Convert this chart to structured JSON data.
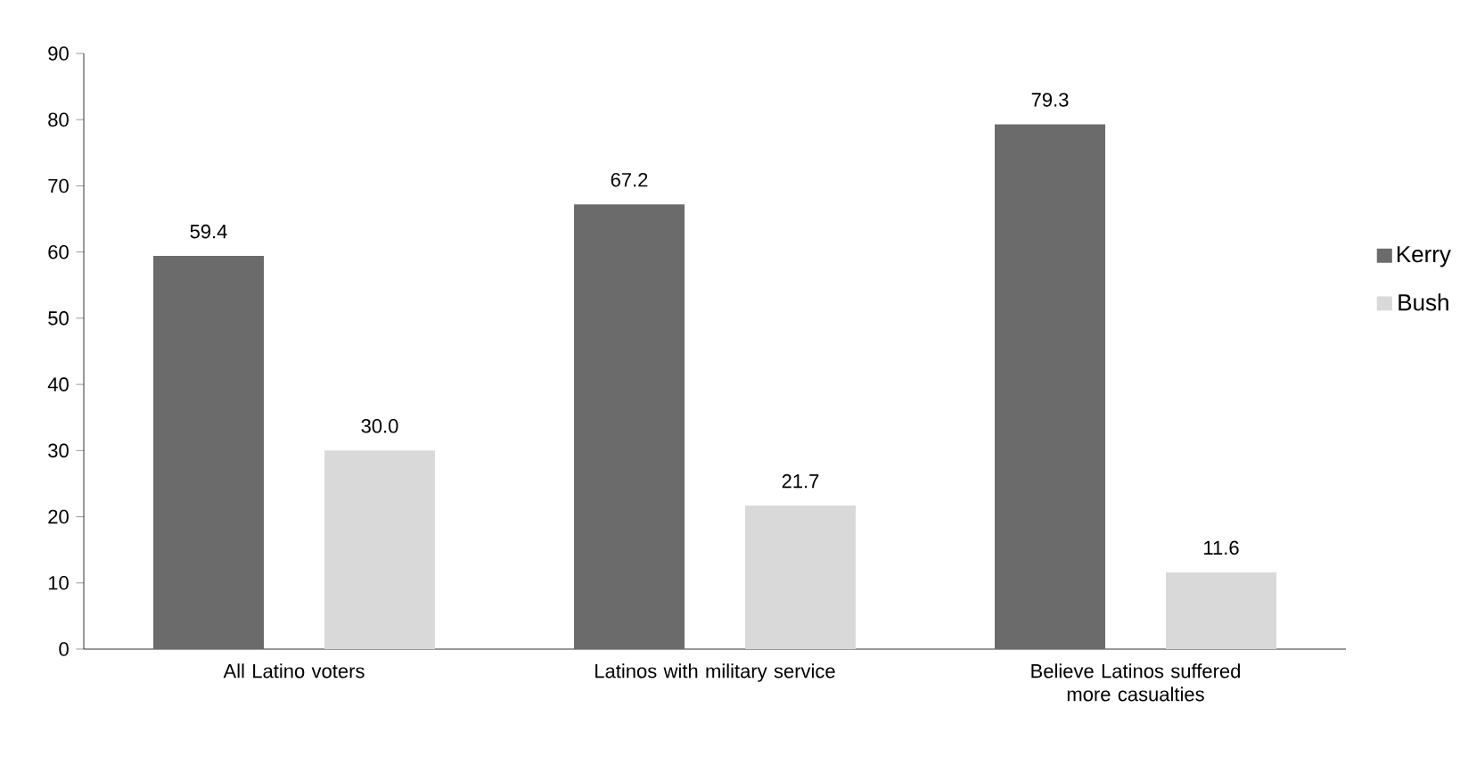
{
  "chart_data": {
    "type": "bar",
    "categories": [
      "All Latino voters",
      "Latinos with military service",
      "Believe Latinos suffered more casualties"
    ],
    "series": [
      {
        "name": "Kerry",
        "color": "#6b6b6b",
        "values": [
          59.4,
          67.2,
          79.3
        ],
        "value_labels": [
          "59.4",
          "67.2",
          "79.3"
        ]
      },
      {
        "name": "Bush",
        "color": "#d9d9d9",
        "values": [
          30.0,
          21.7,
          11.6
        ],
        "value_labels": [
          "30.0",
          "21.7",
          "11.6"
        ]
      }
    ],
    "ylim": [
      0,
      90
    ],
    "yticks": [
      0,
      10,
      20,
      30,
      40,
      50,
      60,
      70,
      80,
      90
    ],
    "grid": false,
    "legend": "right"
  }
}
